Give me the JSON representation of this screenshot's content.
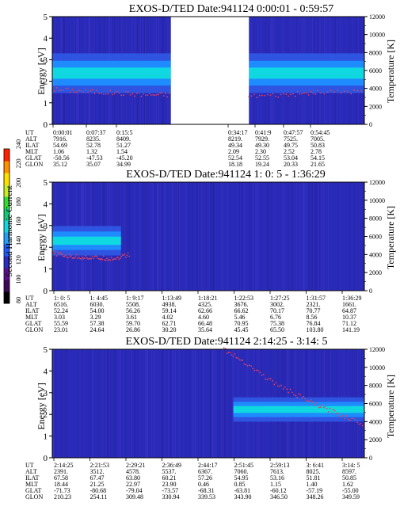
{
  "colorbar": {
    "label": "Second Harmonic Current",
    "tick_labels": [
      "80",
      "100",
      "120",
      "140",
      "160",
      "180",
      "200",
      "220",
      "240"
    ],
    "colors": [
      "#000000",
      "#3d0a55",
      "#5a0f8a",
      "#2a2ac8",
      "#1e5cff",
      "#20a0ff",
      "#10d8e0",
      "#10c878",
      "#30e030",
      "#c8f020",
      "#ffe000",
      "#ff9000",
      "#ff2000"
    ]
  },
  "panels": [
    {
      "title": "EXOS-D/TED   Date:941124   0:00:01 - 0:59:57",
      "ylabel_left": "Energy [eV]",
      "ylabel_right": "Temperature [K]",
      "row_labels": [
        "UT",
        "ALT",
        "ILAT",
        "MLT",
        "GLAT",
        "GLON"
      ],
      "columns": [
        {
          "UT": "0:00:01",
          "ALT": "7916.",
          "ILAT": "54.69",
          "MLT": "1.06",
          "GLAT": "-50.56",
          "GLON": "35.12"
        },
        {
          "UT": "0:07:37",
          "ALT": "8235.",
          "ILAT": "52.78",
          "MLT": "1.32",
          "GLAT": "-47.53",
          "GLON": "35.07"
        },
        {
          "UT": "0:15:5",
          "ALT": "8409.",
          "ILAT": "51.27",
          "MLT": "1.54",
          "GLAT": "-45.20",
          "GLON": "34.99"
        },
        {
          "UT": "0:34:17",
          "ALT": "8219.",
          "ILAT": "49.34",
          "MLT": "2.09",
          "GLAT": "52.54",
          "GLON": "18.18"
        },
        {
          "UT": "0:41:9",
          "ALT": "7929.",
          "ILAT": "49.30",
          "MLT": "2.30",
          "GLAT": "52.55",
          "GLON": "19.24"
        },
        {
          "UT": "0:47:57",
          "ALT": "7525.",
          "ILAT": "49.75",
          "MLT": "2.52",
          "GLAT": "53.04",
          "GLON": "20.33"
        },
        {
          "UT": "0:54:45",
          "ALT": "7005.",
          "ILAT": "50.83",
          "MLT": "2.78",
          "GLAT": "54.15",
          "GLON": "21.65"
        }
      ]
    },
    {
      "title": "EXOS-D/TED   Date:941124   1: 0: 5 - 1:36:29",
      "ylabel_left": "Energy [eV]",
      "ylabel_right": "Temperature [K]",
      "row_labels": [
        "UT",
        "ALT",
        "ILAT",
        "MLT",
        "GLAT",
        "GLON"
      ],
      "columns": [
        {
          "UT": "1: 0: 5",
          "ALT": "6516.",
          "ILAT": "52.24",
          "MLT": "3.03",
          "GLAT": "55.59",
          "GLON": "23.01"
        },
        {
          "UT": "1: 4:45",
          "ALT": "6030.",
          "ILAT": "54.00",
          "MLT": "3.29",
          "GLAT": "57.38",
          "GLON": "24.64"
        },
        {
          "UT": "1: 9:17",
          "ALT": "5508.",
          "ILAT": "56.26",
          "MLT": "3.61",
          "GLAT": "59.70",
          "GLON": "26.86"
        },
        {
          "UT": "1:13:49",
          "ALT": "4938.",
          "ILAT": "59.14",
          "MLT": "4.02",
          "GLAT": "62.71",
          "GLON": "30.20"
        },
        {
          "UT": "1:18:21",
          "ALT": "4325.",
          "ILAT": "62.66",
          "MLT": "4.60",
          "GLAT": "66.48",
          "GLON": "35.64"
        },
        {
          "UT": "1:22:53",
          "ALT": "3676.",
          "ILAT": "66.62",
          "MLT": "5.46",
          "GLAT": "70.95",
          "GLON": "45.45"
        },
        {
          "UT": "1:27:25",
          "ALT": "3002.",
          "ILAT": "70.17",
          "MLT": "6.76",
          "GLAT": "75.38",
          "GLON": "65.50"
        },
        {
          "UT": "1:31:57",
          "ALT": "2321.",
          "ILAT": "70.77",
          "MLT": "8.56",
          "GLAT": "76.84",
          "GLON": "103.80"
        },
        {
          "UT": "1:36:29",
          "ALT": "1661.",
          "ILAT": "64.87",
          "MLT": "10.37",
          "GLAT": "71.12",
          "GLON": "141.19"
        }
      ]
    },
    {
      "title": "EXOS-D/TED   Date:941124   2:14:25 - 3:14: 5",
      "ylabel_left": "Energy [eV]",
      "ylabel_right": "Temperature [K]",
      "row_labels": [
        "UT",
        "ALT",
        "ILAT",
        "MLT",
        "GLAT",
        "GLON"
      ],
      "columns": [
        {
          "UT": "2:14:25",
          "ALT": "2391.",
          "ILAT": "67.58",
          "MLT": "18.44",
          "GLAT": "-71.73",
          "GLON": "210.23"
        },
        {
          "UT": "2:21:53",
          "ALT": "3512.",
          "ILAT": "67.47",
          "MLT": "21.25",
          "GLAT": "-80.68",
          "GLON": "254.11"
        },
        {
          "UT": "2:29:21",
          "ALT": "4578.",
          "ILAT": "63.80",
          "MLT": "22.97",
          "GLAT": "-79.04",
          "GLON": "309.48"
        },
        {
          "UT": "2:36:49",
          "ALT": "5537.",
          "ILAT": "60.21",
          "MLT": "23.90",
          "GLAT": "-73.57",
          "GLON": "330.94"
        },
        {
          "UT": "2:44:17",
          "ALT": "6367.",
          "ILAT": "57.26",
          "MLT": "0.46",
          "GLAT": "-68.31",
          "GLON": "339.53"
        },
        {
          "UT": "2:51:45",
          "ALT": "7060.",
          "ILAT": "54.95",
          "MLT": "0.85",
          "GLAT": "-63.81",
          "GLON": "343.90"
        },
        {
          "UT": "2:59:13",
          "ALT": "7613.",
          "ILAT": "53.16",
          "MLT": "1.15",
          "GLAT": "-60.12",
          "GLON": "346.50"
        },
        {
          "UT": "3: 6:41",
          "ALT": "8025.",
          "ILAT": "51.81",
          "MLT": "1.40",
          "GLAT": "-57.19",
          "GLON": "348.26"
        },
        {
          "UT": "3:14: 5",
          "ALT": "8597.",
          "ILAT": "50.85",
          "MLT": "1.62",
          "GLAT": "-55.00",
          "GLON": "349.59"
        }
      ]
    }
  ],
  "chart_data": [
    {
      "type": "heatmap",
      "title": "EXOS-D/TED   Date:941124   0:00:01 - 0:59:57",
      "ylabel": "Energy [eV]",
      "ylabel_right": "Temperature [K]",
      "ylim": [
        0,
        5
      ],
      "ylim_right": [
        0,
        12000
      ],
      "yticks": [
        "0",
        "1",
        "2",
        "3",
        "4",
        "5"
      ],
      "yticks_right": [
        "0",
        "2000",
        "4000",
        "6000",
        "8000",
        "10000",
        "12000"
      ],
      "x_start": "0:00:01",
      "x_end": "0:59:57",
      "background_level": "dark blue",
      "data_gaps": [
        [
          0.38,
          0.63
        ]
      ],
      "band": {
        "segments": [
          [
            0,
            0.38
          ],
          [
            0.63,
            1
          ]
        ],
        "center_eV": [
          2.4,
          2.35
        ],
        "half_width_eV": [
          0.6,
          0.55
        ],
        "peak_color": "#10d8e0"
      },
      "temperature_trace": {
        "x": [
          0,
          0.1,
          0.2,
          0.3,
          0.38,
          0.63,
          0.75,
          0.85,
          1.0
        ],
        "T_K": [
          3900,
          3700,
          3500,
          3300,
          3300,
          3150,
          3300,
          3550,
          3700
        ]
      }
    },
    {
      "type": "heatmap",
      "title": "EXOS-D/TED   Date:941124   1: 0: 5 - 1:36:29",
      "ylabel": "Energy [eV]",
      "ylabel_right": "Temperature [K]",
      "ylim": [
        0,
        5
      ],
      "ylim_right": [
        0,
        12000
      ],
      "yticks": [
        "0",
        "1",
        "2",
        "3",
        "4",
        "5"
      ],
      "yticks_right": [
        "0",
        "2000",
        "4000",
        "6000",
        "8000",
        "10000",
        "12000"
      ],
      "x_start": "1: 0: 5",
      "x_end": "1:36:29",
      "background_level": "dark blue",
      "data_gaps": [],
      "band": {
        "segments": [
          [
            0,
            0.22
          ]
        ],
        "center_eV": [
          2.3,
          2.3
        ],
        "half_width_eV": [
          0.45,
          0.4
        ],
        "peak_color": "#10d8e0"
      },
      "temperature_trace": {
        "x": [
          0,
          0.05,
          0.1,
          0.15,
          0.2,
          0.25
        ],
        "T_K": [
          4200,
          3800,
          3700,
          3600,
          3550,
          4000
        ]
      }
    },
    {
      "type": "heatmap",
      "title": "EXOS-D/TED   Date:941124   2:14:25 - 3:14: 5",
      "ylabel": "Energy [eV]",
      "ylabel_right": "Temperature [K]",
      "ylim": [
        0,
        5
      ],
      "ylim_right": [
        0,
        12000
      ],
      "yticks": [
        "0",
        "1",
        "2",
        "3",
        "4",
        "5"
      ],
      "yticks_right": [
        "0",
        "2000",
        "4000",
        "6000",
        "8000",
        "10000",
        "12000"
      ],
      "x_start": "2:14:25",
      "x_end": "3:14: 5",
      "background_level": "dark blue",
      "data_gaps": [],
      "band": {
        "segments": [
          [
            0.58,
            1
          ]
        ],
        "center_eV": [
          2.15,
          2.3
        ],
        "half_width_eV": [
          0.25,
          0.45
        ],
        "peak_color": "#10d8e0"
      },
      "temperature_trace": {
        "x": [
          0.55,
          0.62,
          0.7,
          0.78,
          0.85,
          0.92,
          1.0
        ],
        "T_K": [
          12000,
          10500,
          8500,
          7000,
          5800,
          4800,
          3700
        ]
      }
    }
  ]
}
